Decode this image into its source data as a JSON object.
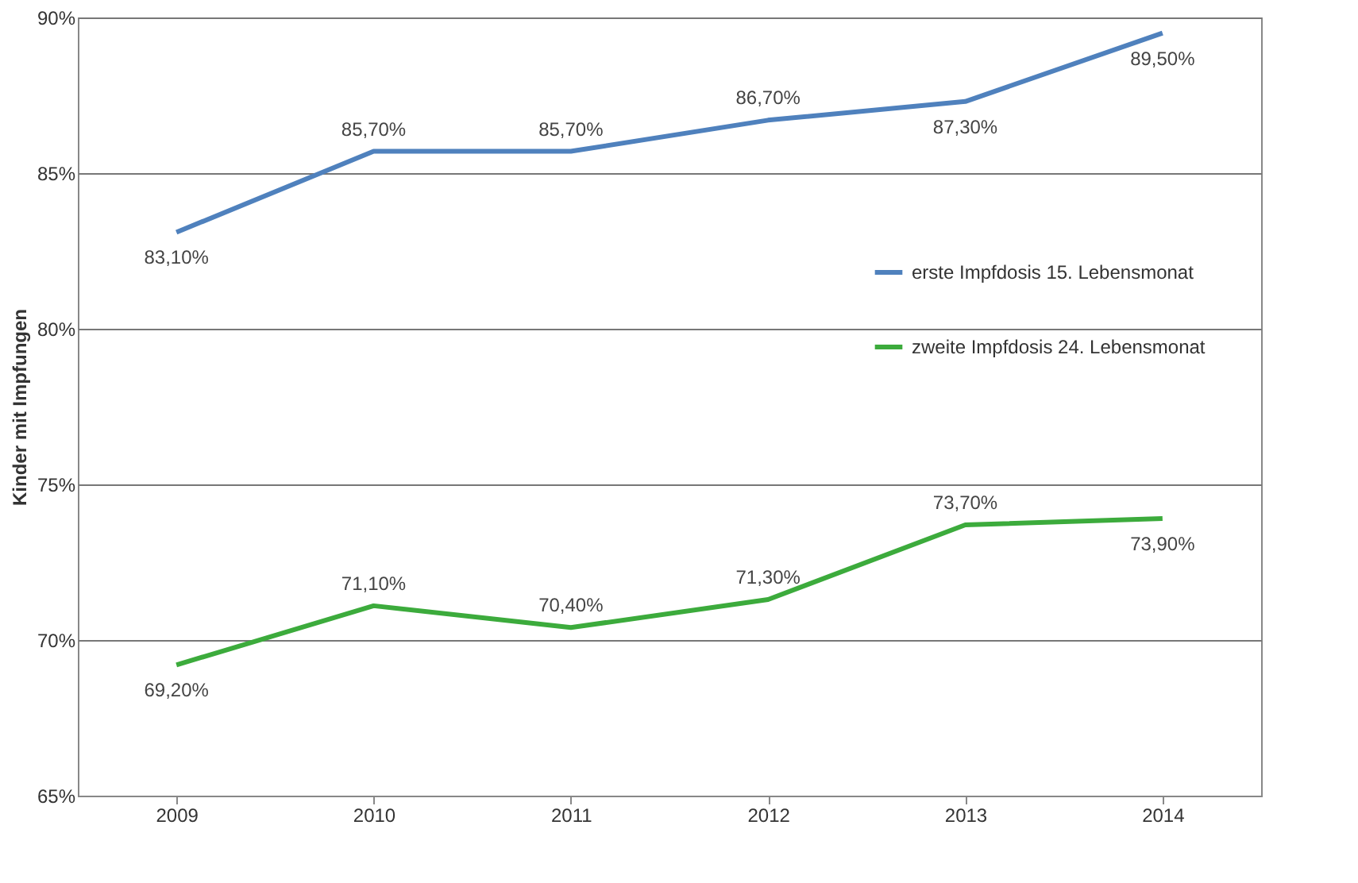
{
  "chart_data": {
    "type": "line",
    "ylabel": "Kinder mit Impfungen",
    "categories": [
      "2009",
      "2010",
      "2011",
      "2012",
      "2013",
      "2014"
    ],
    "series": [
      {
        "name": "erste Impfdosis 15. Lebensmonat",
        "color": "#4f81bd",
        "values": [
          83.1,
          85.7,
          85.7,
          86.7,
          87.3,
          89.5
        ],
        "value_labels": [
          "83,10%",
          "85,70%",
          "85,70%",
          "86,70%",
          "87,30%",
          "89,50%"
        ]
      },
      {
        "name": "zweite Impfdosis 24. Lebensmonat",
        "color": "#3cab3c",
        "values": [
          69.2,
          71.1,
          70.4,
          71.3,
          73.7,
          73.9
        ],
        "value_labels": [
          "69,20%",
          "71,10%",
          "70,40%",
          "71,30%",
          "73,70%",
          "73,90%"
        ]
      }
    ],
    "ylim": [
      65,
      90
    ],
    "yticks": [
      {
        "value": 65,
        "label": "65%"
      },
      {
        "value": 70,
        "label": "70%"
      },
      {
        "value": 75,
        "label": "75%"
      },
      {
        "value": 80,
        "label": "80%"
      },
      {
        "value": 85,
        "label": "85%"
      },
      {
        "value": 90,
        "label": "90%"
      }
    ],
    "grid": "y",
    "legend": "right",
    "marker": "none",
    "line_style": "solid"
  }
}
